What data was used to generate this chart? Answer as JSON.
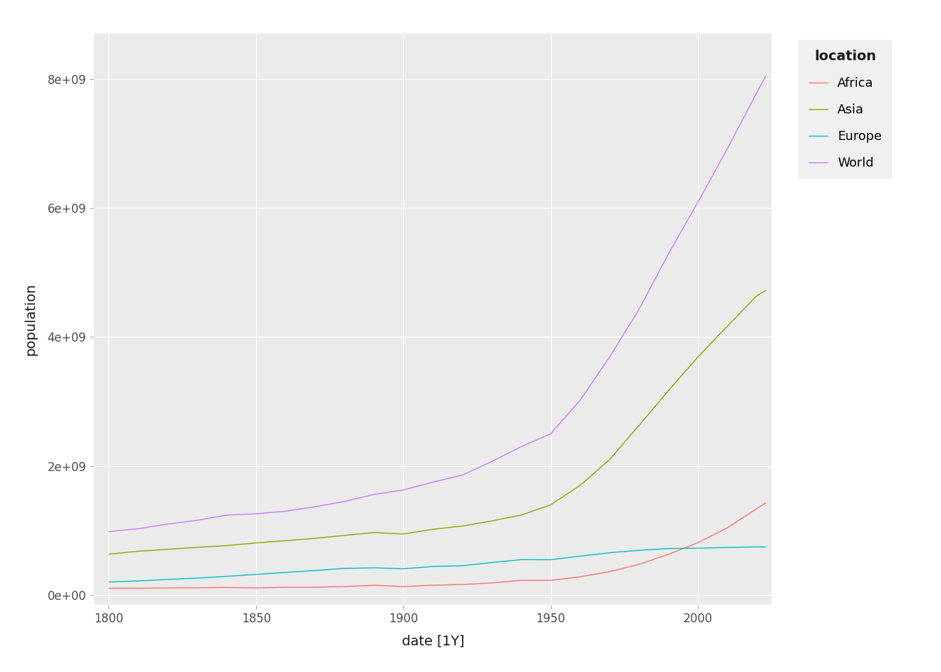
{
  "title": "",
  "xlabel": "date [1Y]",
  "ylabel": "population",
  "legend_title": "location",
  "background_color": "#EBEBEB",
  "grid_color": "#FFFFFF",
  "series": {
    "Africa": {
      "color": "#F8766D",
      "years": [
        1800,
        1810,
        1820,
        1830,
        1840,
        1850,
        1860,
        1870,
        1880,
        1890,
        1900,
        1910,
        1920,
        1930,
        1940,
        1950,
        1960,
        1970,
        1980,
        1990,
        2000,
        2010,
        2020,
        2023
      ],
      "values": [
        107000000.0,
        107000000.0,
        111000000.0,
        113000000.0,
        118000000.0,
        111000000.0,
        122000000.0,
        122000000.0,
        133000000.0,
        153000000.0,
        133000000.0,
        154000000.0,
        164000000.0,
        189000000.0,
        229000000.0,
        229000000.0,
        284000000.0,
        364000000.0,
        477000000.0,
        632000000.0,
        814000000.0,
        1044000000.0,
        1341000000.0,
        1430000000.0
      ]
    },
    "Asia": {
      "color": "#7CAE00",
      "years": [
        1800,
        1810,
        1820,
        1830,
        1840,
        1850,
        1860,
        1870,
        1880,
        1890,
        1900,
        1910,
        1920,
        1930,
        1940,
        1950,
        1960,
        1970,
        1980,
        1990,
        2000,
        2010,
        2020,
        2023
      ],
      "values": [
        635000000.0,
        680000000.0,
        710000000.0,
        740000000.0,
        767000000.0,
        809000000.0,
        844000000.0,
        880000000.0,
        925000000.0,
        970000000.0,
        947000000.0,
        1020000000.0,
        1070000000.0,
        1150000000.0,
        1240000000.0,
        1400000000.0,
        1700000000.0,
        2100000000.0,
        2630000000.0,
        3170000000.0,
        3690000000.0,
        4170000000.0,
        4640000000.0,
        4720000000.0
      ]
    },
    "Europe": {
      "color": "#00BFC4",
      "years": [
        1800,
        1810,
        1820,
        1830,
        1840,
        1850,
        1860,
        1870,
        1880,
        1890,
        1900,
        1910,
        1920,
        1930,
        1940,
        1950,
        1960,
        1970,
        1980,
        1990,
        2000,
        2010,
        2020,
        2023
      ],
      "values": [
        203000000.0,
        220000000.0,
        243000000.0,
        264000000.0,
        291000000.0,
        321000000.0,
        352000000.0,
        381000000.0,
        414000000.0,
        423000000.0,
        408000000.0,
        444000000.0,
        455000000.0,
        505000000.0,
        550000000.0,
        549000000.0,
        604000000.0,
        657000000.0,
        694000000.0,
        722000000.0,
        727000000.0,
        738000000.0,
        748000000.0,
        745000000.0
      ]
    },
    "World": {
      "color": "#C77CFF",
      "years": [
        1800,
        1810,
        1820,
        1830,
        1840,
        1850,
        1860,
        1870,
        1880,
        1890,
        1900,
        1910,
        1920,
        1930,
        1940,
        1950,
        1960,
        1970,
        1980,
        1990,
        2000,
        2010,
        2020,
        2023
      ],
      "values": [
        982000000.0,
        1030000000.0,
        1100000000.0,
        1160000000.0,
        1240000000.0,
        1260000000.0,
        1300000000.0,
        1370000000.0,
        1450000000.0,
        1560000000.0,
        1630000000.0,
        1750000000.0,
        1860000000.0,
        2070000000.0,
        2300000000.0,
        2500000000.0,
        3020000000.0,
        3690000000.0,
        4430000000.0,
        5290000000.0,
        6090000000.0,
        6920000000.0,
        7790000000.0,
        8040000000.0
      ]
    }
  },
  "xlim": [
    1795,
    2025
  ],
  "ylim": [
    -150000000.0,
    8700000000.0
  ],
  "xticks": [
    1800,
    1850,
    1900,
    1950,
    2000
  ],
  "yticks": [
    0,
    2000000000.0,
    4000000000.0,
    6000000000.0,
    8000000000.0
  ],
  "ytick_labels": [
    "0e+00",
    "2e+09",
    "4e+09",
    "6e+09",
    "8e+09"
  ],
  "tick_color": "#4D4D4D",
  "axis_label_color": "#1A1A1A",
  "font_family": "sans-serif",
  "axis_label_fontsize": 14,
  "tick_label_fontsize": 12,
  "legend_title_fontsize": 14,
  "legend_fontsize": 13,
  "line_width": 1.0
}
